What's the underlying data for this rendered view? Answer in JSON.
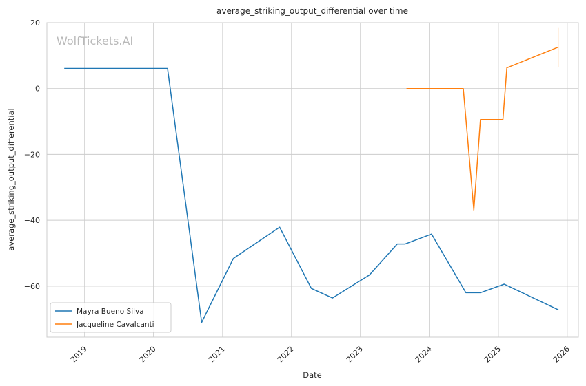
{
  "chart_data": {
    "type": "line",
    "title": "average_striking_output_differential over time",
    "xlabel": "Date",
    "ylabel": "average_striking_output_differential",
    "watermark": "WolfTickets.AI",
    "x_ticks": [
      "2019",
      "2020",
      "2021",
      "2022",
      "2023",
      "2024",
      "2025",
      "2026"
    ],
    "y_ticks": [
      20,
      0,
      -20,
      -40,
      -60
    ],
    "xlim": [
      "2018-06-15",
      "2026-03-01"
    ],
    "ylim": [
      -75.5,
      20
    ],
    "grid": true,
    "legend_position": "lower-left",
    "series": [
      {
        "name": "Mayra Bueno Silva",
        "color": "#1f77b4",
        "points": [
          [
            "2018-09-15",
            6.1
          ],
          [
            "2020-03-15",
            6.1
          ],
          [
            "2020-09-12",
            -71.0
          ],
          [
            "2021-02-27",
            -51.6
          ],
          [
            "2021-10-30",
            -42.1
          ],
          [
            "2022-04-16",
            -60.7
          ],
          [
            "2022-08-06",
            -63.6
          ],
          [
            "2023-02-18",
            -56.6
          ],
          [
            "2023-07-15",
            -47.2
          ],
          [
            "2023-08-26",
            -47.2
          ],
          [
            "2024-01-13",
            -44.2
          ],
          [
            "2024-07-13",
            -62.0
          ],
          [
            "2024-09-28",
            -62.0
          ],
          [
            "2025-02-01",
            -59.4
          ],
          [
            "2025-11-15",
            -67.2
          ]
        ]
      },
      {
        "name": "Jacqueline Cavalcanti",
        "color": "#ff7f0e",
        "points": [
          [
            "2023-09-02",
            0.0
          ],
          [
            "2024-06-29",
            0.0
          ],
          [
            "2024-08-24",
            -36.9
          ],
          [
            "2024-09-28",
            -9.4
          ],
          [
            "2025-01-25",
            -9.4
          ],
          [
            "2025-02-15",
            6.3
          ],
          [
            "2025-11-15",
            12.6
          ]
        ]
      }
    ]
  }
}
